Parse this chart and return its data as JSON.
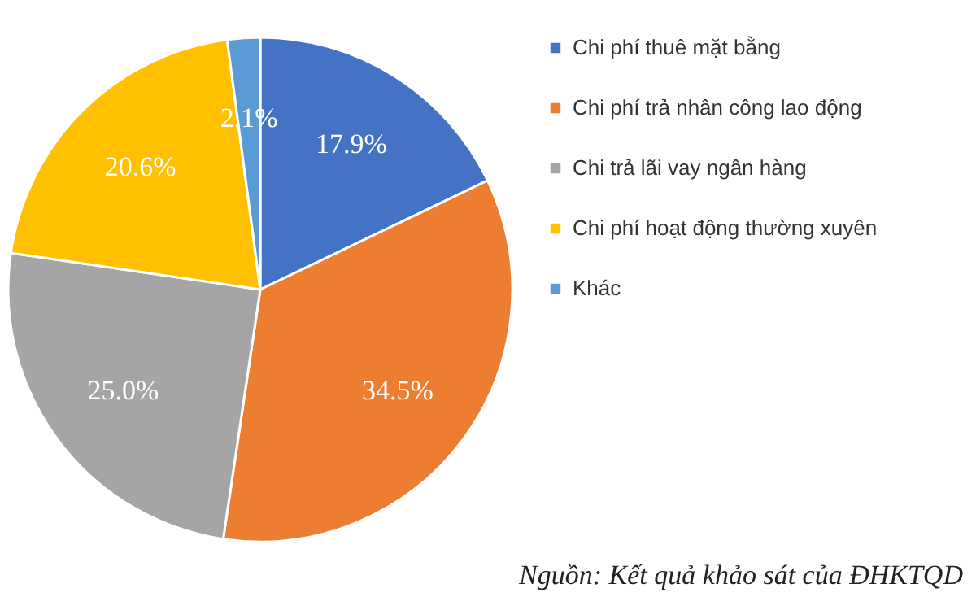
{
  "chart_data": {
    "type": "pie",
    "categories": [
      "Chi phí thuê mặt bằng",
      "Chi phí trả nhân công lao động",
      "Chi trả lãi vay ngân hàng",
      "Chi phí hoạt động thường xuyên",
      "Khác"
    ],
    "values": [
      17.9,
      34.5,
      25.0,
      20.6,
      2.1
    ],
    "value_labels": [
      "17.9%",
      "34.5%",
      "25.0%",
      "20.6%",
      "2.1%"
    ],
    "colors": [
      "#4472c4",
      "#ed7d31",
      "#a5a5a5",
      "#ffc000",
      "#5b9bd5"
    ],
    "legend": "right",
    "annotations": [
      "Nguồn: Kết quả khảo sát của ĐHKTQD"
    ]
  }
}
